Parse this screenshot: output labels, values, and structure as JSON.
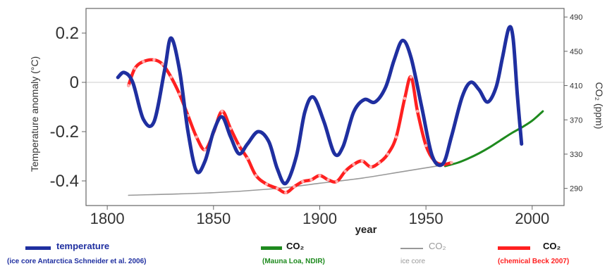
{
  "chart_data": {
    "type": "line",
    "xlabel": "year",
    "ylabel": "Temperature anomaly (°C)",
    "y2label": "CO₂ (ppm)",
    "xlim": [
      1790,
      2015
    ],
    "ylim": [
      -0.5,
      0.3
    ],
    "y2lim": [
      270,
      500
    ],
    "x_ticks": [
      1800,
      1850,
      1900,
      1950,
      2000
    ],
    "y_ticks": [
      {
        "v": 0.2,
        "label": "0.2"
      },
      {
        "v": 0,
        "label": "0"
      },
      {
        "v": -0.2,
        "label": "-0.2"
      },
      {
        "v": -0.4,
        "label": "-0.4"
      }
    ],
    "y2_ticks": [
      290,
      330,
      370,
      410,
      450,
      490
    ],
    "zero_line": true,
    "series": [
      {
        "name": "temperature",
        "axis": "left",
        "color": "#1f2fa0",
        "x": [
          1805,
          1808,
          1812,
          1817,
          1822,
          1827,
          1830,
          1834,
          1838,
          1842,
          1846,
          1850,
          1854,
          1858,
          1862,
          1866,
          1871,
          1876,
          1880,
          1884,
          1889,
          1893,
          1897,
          1902,
          1907,
          1911,
          1916,
          1921,
          1926,
          1931,
          1935,
          1939,
          1943,
          1948,
          1953,
          1958,
          1962,
          1967,
          1971,
          1975,
          1979,
          1983,
          1986,
          1989,
          1991,
          1993,
          1995
        ],
        "values": [
          0.02,
          0.04,
          0.0,
          -0.15,
          -0.16,
          0.05,
          0.18,
          0.05,
          -0.2,
          -0.36,
          -0.32,
          -0.2,
          -0.14,
          -0.22,
          -0.29,
          -0.25,
          -0.2,
          -0.24,
          -0.35,
          -0.41,
          -0.3,
          -0.12,
          -0.06,
          -0.16,
          -0.29,
          -0.26,
          -0.12,
          -0.07,
          -0.08,
          -0.02,
          0.09,
          0.17,
          0.1,
          -0.1,
          -0.3,
          -0.33,
          -0.22,
          -0.06,
          0.0,
          -0.03,
          -0.08,
          -0.02,
          0.1,
          0.22,
          0.18,
          -0.05,
          -0.25
        ]
      },
      {
        "name": "CO₂",
        "axis": "right",
        "source": "(Mauna Loa, NDIR)",
        "color": "#1e8a1e",
        "x": [
          1959,
          1965,
          1970,
          1975,
          1980,
          1985,
          1990,
          1995,
          2000,
          2005
        ],
        "values": [
          316,
          320,
          325,
          331,
          338,
          346,
          354,
          361,
          369,
          380
        ]
      },
      {
        "name": "CO₂",
        "axis": "right",
        "source": "ice core",
        "color": "#999999",
        "x": [
          1810,
          1850,
          1880,
          1900,
          1920,
          1940,
          1960
        ],
        "values": [
          282,
          285,
          290,
          296,
          302,
          310,
          318
        ]
      },
      {
        "name": "CO₂",
        "axis": "right",
        "source": "(chemical Beck 2007)",
        "color": "#ff2020",
        "x": [
          1810,
          1813,
          1817,
          1822,
          1826,
          1830,
          1834,
          1838,
          1842,
          1846,
          1850,
          1854,
          1858,
          1862,
          1866,
          1870,
          1875,
          1880,
          1884,
          1888,
          1892,
          1896,
          1900,
          1904,
          1908,
          1912,
          1916,
          1920,
          1924,
          1928,
          1932,
          1936,
          1940,
          1943,
          1946,
          1950,
          1954,
          1958,
          1962
        ],
        "values": [
          410,
          430,
          438,
          440,
          435,
          420,
          400,
          375,
          350,
          335,
          355,
          380,
          360,
          340,
          325,
          305,
          295,
          290,
          285,
          292,
          298,
          300,
          305,
          300,
          298,
          310,
          318,
          322,
          315,
          320,
          330,
          350,
          395,
          420,
          380,
          340,
          322,
          318,
          320
        ]
      }
    ]
  },
  "legend": [
    {
      "name": "temperature",
      "source": "(ice core Antarctica Schneider et al. 2006)",
      "color": "#1f2fa0"
    },
    {
      "name": "CO₂",
      "source": "(Mauna Loa, NDIR)",
      "color": "#1e8a1e"
    },
    {
      "name": "CO₂",
      "source": "ice core",
      "color": "#999999"
    },
    {
      "name": "CO₂",
      "source": "(chemical Beck 2007)",
      "color": "#ff2020"
    }
  ]
}
